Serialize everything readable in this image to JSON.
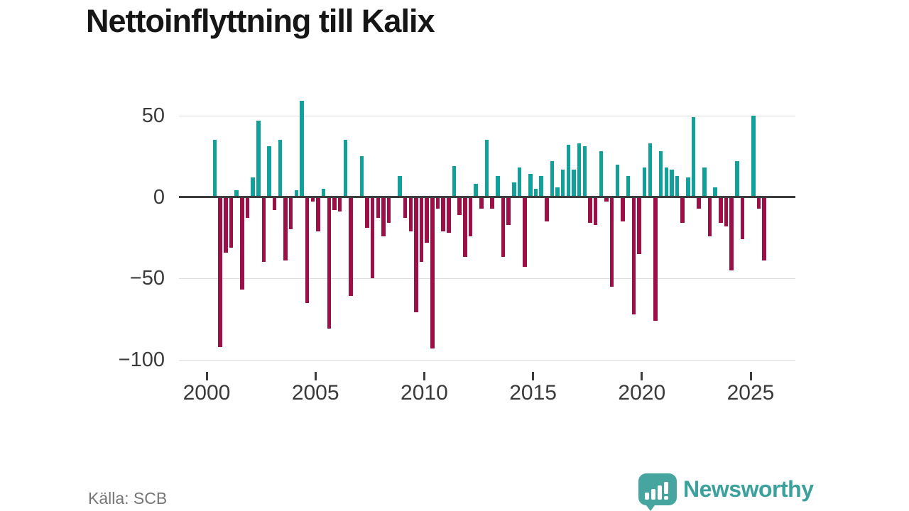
{
  "title": "Nettoinflyttning till Kalix",
  "source": "Källa: SCB",
  "logo": {
    "brand": "Newsworthy",
    "icon": "newsworthy-chart-bubble-icon"
  },
  "colors": {
    "positive_bar": "#12a19a",
    "negative_bar": "#9d0f47",
    "zero_line": "#3d3d3d",
    "gridline": "#dcdcdc",
    "title_text": "#161616",
    "axis_text": "#3a3a3a",
    "source_text": "#767676",
    "logo_teal": "#47a59f"
  },
  "chart_data": {
    "type": "bar",
    "title": "Nettoinflyttning till Kalix",
    "frequency": "quarterly",
    "start_period": "2000 Q2",
    "end_period": "2025 Q3",
    "ylim": [
      -100,
      60
    ],
    "grid": "horizontal",
    "y_ticks": [
      50,
      0,
      -50,
      -100
    ],
    "y_tick_labels": [
      "50",
      "0",
      "−50",
      "−100"
    ],
    "x_tick_years": [
      2000,
      2005,
      2010,
      2015,
      2020,
      2025
    ],
    "values": [
      35,
      -92,
      -34,
      -31,
      4,
      -57,
      -13,
      12,
      47,
      -40,
      31,
      -8,
      35,
      -39,
      -20,
      4,
      59,
      -65,
      -3,
      -21,
      5,
      -81,
      -8,
      -9,
      35,
      -61,
      0,
      25,
      -19,
      -50,
      -13,
      -24,
      -16,
      0,
      13,
      -13,
      -21,
      -71,
      -40,
      -28,
      -93,
      -7,
      -21,
      -22,
      19,
      -11,
      -37,
      -24,
      8,
      -7,
      35,
      -7,
      13,
      -37,
      -17,
      9,
      18,
      -43,
      14,
      5,
      13,
      -15,
      22,
      6,
      17,
      32,
      17,
      33,
      31,
      -16,
      -17,
      28,
      -3,
      -55,
      20,
      -15,
      13,
      -72,
      -35,
      18,
      33,
      -76,
      28,
      18,
      17,
      13,
      -16,
      12,
      49,
      -7,
      18,
      -24,
      6,
      -16,
      -18,
      -45,
      22,
      -26,
      0,
      50,
      -7,
      -39
    ]
  }
}
